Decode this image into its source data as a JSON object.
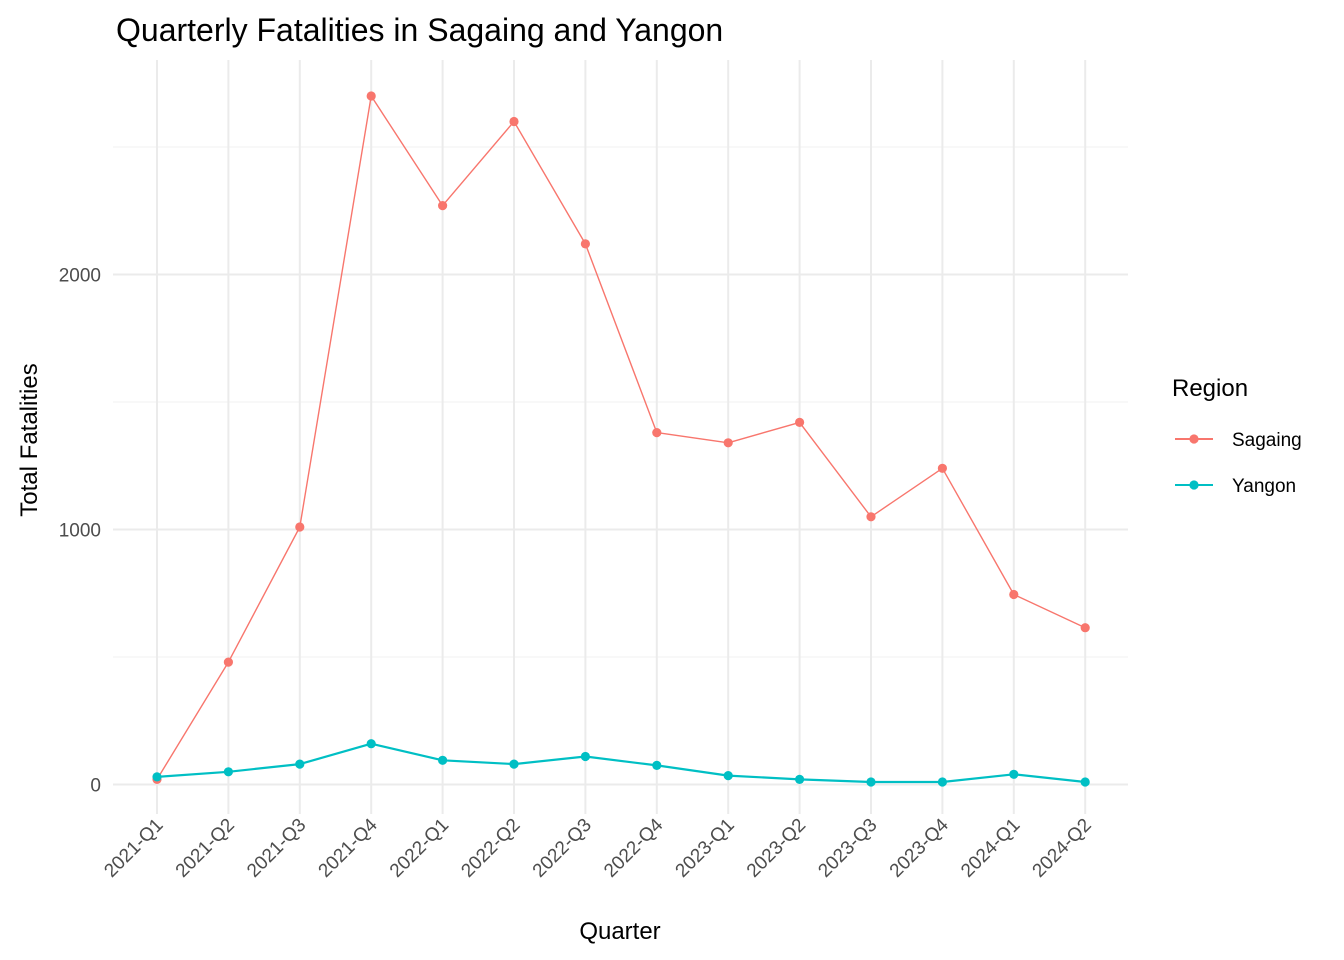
{
  "chart_data": {
    "type": "line",
    "title": "Quarterly Fatalities in Sagaing and Yangon",
    "xlabel": "Quarter",
    "ylabel": "Total Fatalities",
    "categories": [
      "2021-Q1",
      "2021-Q2",
      "2021-Q3",
      "2021-Q4",
      "2022-Q1",
      "2022-Q2",
      "2022-Q3",
      "2022-Q4",
      "2023-Q1",
      "2023-Q2",
      "2023-Q3",
      "2023-Q4",
      "2024-Q1",
      "2024-Q2"
    ],
    "y_ticks": [
      "0",
      "1000",
      "2000"
    ],
    "ylim": [
      -130,
      2860
    ],
    "grid": true,
    "legend": {
      "title": "Region",
      "position": "right"
    },
    "series": [
      {
        "name": "Sagaing",
        "color": "#f8766d",
        "values": [
          20,
          480,
          1010,
          2700,
          2270,
          2600,
          2120,
          1380,
          1340,
          1420,
          1050,
          1240,
          745,
          615
        ]
      },
      {
        "name": "Yangon",
        "color": "#00bfc4",
        "values": [
          30,
          50,
          80,
          160,
          95,
          80,
          110,
          75,
          35,
          20,
          10,
          10,
          40,
          10
        ]
      }
    ]
  }
}
